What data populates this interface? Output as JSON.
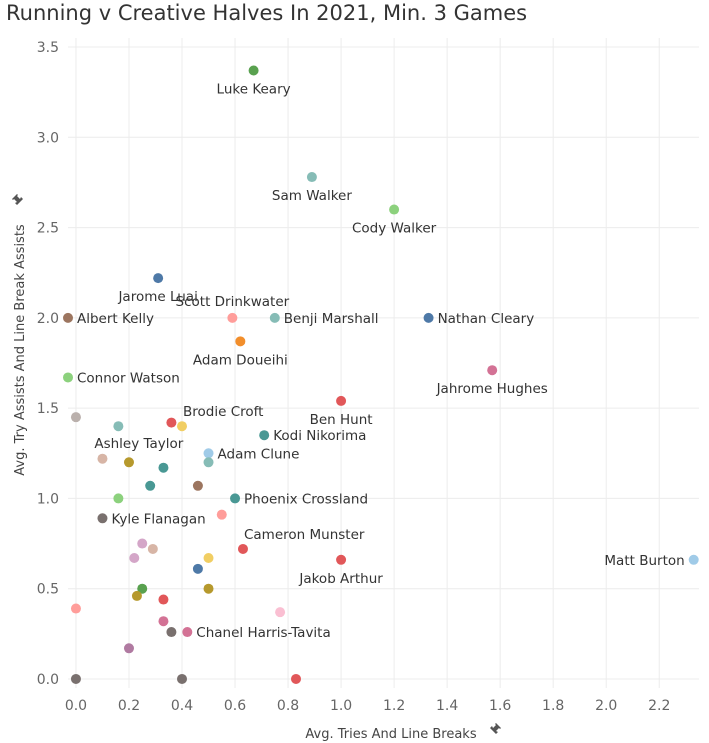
{
  "chart_data": {
    "type": "scatter",
    "title": "Running v Creative Halves In 2021, Min. 3 Games",
    "xlabel": "Avg. Tries And Line Breaks",
    "ylabel": "Avg. Try Assists And Line Break Assists",
    "xlim": [
      -0.03,
      2.35
    ],
    "ylim": [
      -0.05,
      3.55
    ],
    "xticks": [
      "0.0",
      "0.2",
      "0.4",
      "0.6",
      "0.8",
      "1.0",
      "1.2",
      "1.4",
      "1.6",
      "1.8",
      "2.0",
      "2.2"
    ],
    "yticks": [
      "0.0",
      "0.5",
      "1.0",
      "1.5",
      "2.0",
      "2.5",
      "3.0",
      "3.5"
    ],
    "grid": true,
    "points": [
      {
        "label": "Luke Keary",
        "x": 0.67,
        "y": 3.37,
        "color": "#59a14f",
        "anchor": "below"
      },
      {
        "label": "Sam Walker",
        "x": 0.89,
        "y": 2.78,
        "color": "#86bcb6",
        "anchor": "below"
      },
      {
        "label": "Cody Walker",
        "x": 1.2,
        "y": 2.6,
        "color": "#8cd17d",
        "anchor": "below"
      },
      {
        "label": "Jarome Luai",
        "x": 0.31,
        "y": 2.22,
        "color": "#4e79a7",
        "anchor": "below"
      },
      {
        "label": "Scott Drinkwater",
        "x": 0.59,
        "y": 2.0,
        "color": "#ff9d9a",
        "anchor": "above"
      },
      {
        "label": "Benji Marshall",
        "x": 0.75,
        "y": 2.0,
        "color": "#86bcb6",
        "anchor": "right"
      },
      {
        "label": "Albert Kelly",
        "x": -0.03,
        "y": 2.0,
        "color": "#9c755f",
        "anchor": "right"
      },
      {
        "label": "Nathan Cleary",
        "x": 1.33,
        "y": 2.0,
        "color": "#4e79a7",
        "anchor": "right"
      },
      {
        "label": "Adam Doueihi",
        "x": 0.62,
        "y": 1.87,
        "color": "#f28e2b",
        "anchor": "below"
      },
      {
        "label": "Connor Watson",
        "x": -0.03,
        "y": 1.67,
        "color": "#8cd17d",
        "anchor": "right"
      },
      {
        "label": "Jahrome Hughes",
        "x": 1.57,
        "y": 1.71,
        "color": "#d37295",
        "anchor": "below"
      },
      {
        "label": "Ben Hunt",
        "x": 1.0,
        "y": 1.54,
        "color": "#e15759",
        "anchor": "below"
      },
      {
        "label": "Brodie Croft",
        "x": 0.4,
        "y": 1.4,
        "color": "#f1ce63",
        "anchor": "above-right"
      },
      {
        "label": "Ashley Taylor",
        "x": 0.16,
        "y": 1.4,
        "color": "#86bcb6",
        "anchor": "below-right"
      },
      {
        "label": "Kodi Nikorima",
        "x": 0.71,
        "y": 1.35,
        "color": "#499894",
        "anchor": "right"
      },
      {
        "label": "Adam Clune",
        "x": 0.5,
        "y": 1.25,
        "color": "#a0cbe8",
        "anchor": "right"
      },
      {
        "label": "Phoenix Crossland",
        "x": 0.6,
        "y": 1.0,
        "color": "#499894",
        "anchor": "right"
      },
      {
        "label": "Kyle Flanagan",
        "x": 0.1,
        "y": 0.89,
        "color": "#79706e",
        "anchor": "right"
      },
      {
        "label": "Cameron Munster",
        "x": 0.63,
        "y": 0.72,
        "color": "#e15759",
        "anchor": "above-right"
      },
      {
        "label": "Matt Burton",
        "x": 2.33,
        "y": 0.66,
        "color": "#a0cbe8",
        "anchor": "left"
      },
      {
        "label": "Jakob Arthur",
        "x": 1.0,
        "y": 0.66,
        "color": "#e15759",
        "anchor": "below"
      },
      {
        "label": "Chanel Harris-Tavita",
        "x": 0.42,
        "y": 0.26,
        "color": "#d37295",
        "anchor": "right"
      },
      {
        "label": "",
        "x": 0.0,
        "y": 1.45,
        "color": "#bab0ac"
      },
      {
        "label": "",
        "x": 0.1,
        "y": 1.22,
        "color": "#d7b5a6"
      },
      {
        "label": "",
        "x": 0.2,
        "y": 1.2,
        "color": "#b6992d"
      },
      {
        "label": "",
        "x": 0.36,
        "y": 1.42,
        "color": "#e15759"
      },
      {
        "label": "",
        "x": 0.33,
        "y": 1.17,
        "color": "#499894"
      },
      {
        "label": "",
        "x": 0.5,
        "y": 1.2,
        "color": "#86bcb6"
      },
      {
        "label": "",
        "x": 0.28,
        "y": 1.07,
        "color": "#499894"
      },
      {
        "label": "",
        "x": 0.46,
        "y": 1.07,
        "color": "#9c755f"
      },
      {
        "label": "",
        "x": 0.16,
        "y": 1.0,
        "color": "#8cd17d"
      },
      {
        "label": "",
        "x": 0.55,
        "y": 0.91,
        "color": "#ff9d9a"
      },
      {
        "label": "",
        "x": 0.25,
        "y": 0.75,
        "color": "#d4a6c8"
      },
      {
        "label": "",
        "x": 0.29,
        "y": 0.72,
        "color": "#d7b5a6"
      },
      {
        "label": "",
        "x": 0.22,
        "y": 0.67,
        "color": "#d4a6c8"
      },
      {
        "label": "",
        "x": 0.46,
        "y": 0.61,
        "color": "#4e79a7"
      },
      {
        "label": "",
        "x": 0.5,
        "y": 0.67,
        "color": "#f1ce63"
      },
      {
        "label": "",
        "x": 0.25,
        "y": 0.5,
        "color": "#59a14f"
      },
      {
        "label": "",
        "x": 0.23,
        "y": 0.46,
        "color": "#b6992d"
      },
      {
        "label": "",
        "x": 0.5,
        "y": 0.5,
        "color": "#b6992d"
      },
      {
        "label": "",
        "x": 0.33,
        "y": 0.44,
        "color": "#e15759"
      },
      {
        "label": "",
        "x": 0.0,
        "y": 0.39,
        "color": "#ff9d9a"
      },
      {
        "label": "",
        "x": 0.77,
        "y": 0.37,
        "color": "#fabfd2"
      },
      {
        "label": "",
        "x": 0.33,
        "y": 0.32,
        "color": "#d37295"
      },
      {
        "label": "",
        "x": 0.36,
        "y": 0.26,
        "color": "#79706e"
      },
      {
        "label": "",
        "x": 0.2,
        "y": 0.17,
        "color": "#b07aa1"
      },
      {
        "label": "",
        "x": 0.0,
        "y": 0.0,
        "color": "#79706e"
      },
      {
        "label": "",
        "x": 0.4,
        "y": 0.0,
        "color": "#79706e"
      },
      {
        "label": "",
        "x": 0.83,
        "y": 0.0,
        "color": "#e15759"
      }
    ]
  }
}
